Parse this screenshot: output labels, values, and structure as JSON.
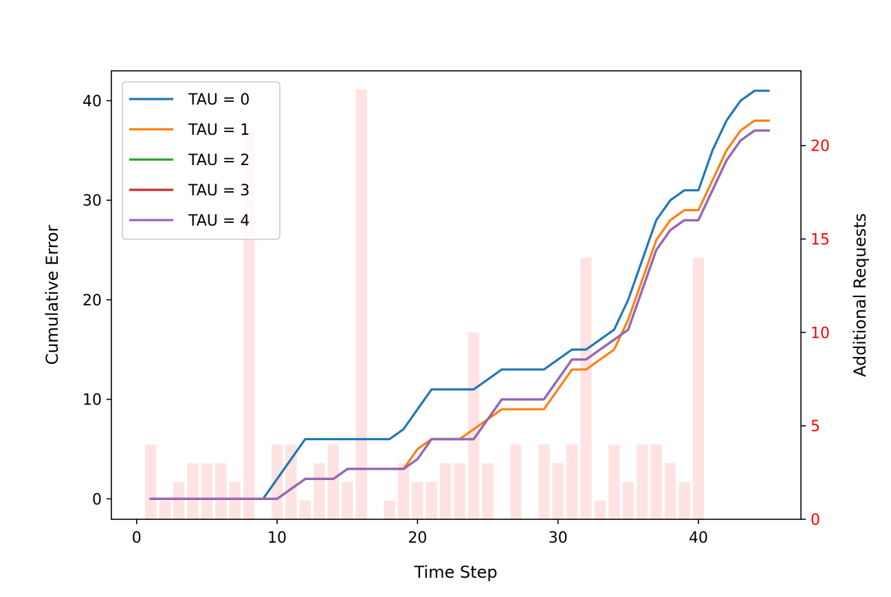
{
  "chart_data": {
    "type": "line",
    "title": "",
    "xlabel": "Time Step",
    "ylabel": "Cumulative Error",
    "y2label": "Additional Requests",
    "xlim": [
      -1.8,
      47.3
    ],
    "ylim": [
      -2.05,
      43.0
    ],
    "y2lim": [
      0,
      24.0
    ],
    "x_ticks": [
      0,
      10,
      20,
      30,
      40
    ],
    "y_ticks": [
      0,
      10,
      20,
      30,
      40
    ],
    "y2_ticks": [
      0,
      5,
      10,
      15,
      20
    ],
    "y2_tick_color": "#ff0000",
    "grid": false,
    "legend_position": "upper-left",
    "x": [
      1,
      2,
      3,
      4,
      5,
      6,
      7,
      8,
      9,
      10,
      11,
      12,
      13,
      14,
      15,
      16,
      17,
      18,
      19,
      20,
      21,
      22,
      23,
      24,
      25,
      26,
      27,
      28,
      29,
      30,
      31,
      32,
      33,
      34,
      35,
      36,
      37,
      38,
      39,
      40,
      41,
      42,
      43,
      44,
      45
    ],
    "series": [
      {
        "name": "TAU = 0",
        "color": "#1f77b4",
        "values": [
          0,
          0,
          0,
          0,
          0,
          0,
          0,
          0,
          0,
          2,
          4,
          6,
          6,
          6,
          6,
          6,
          6,
          6,
          7,
          9,
          11,
          11,
          11,
          11,
          12,
          13,
          13,
          13,
          13,
          14,
          15,
          15,
          16,
          17,
          20,
          24,
          28,
          30,
          31,
          31,
          35,
          38,
          40,
          41,
          41
        ]
      },
      {
        "name": "TAU = 1",
        "color": "#ff7f0e",
        "values": [
          0,
          0,
          0,
          0,
          0,
          0,
          0,
          0,
          0,
          0,
          1,
          2,
          2,
          2,
          3,
          3,
          3,
          3,
          3,
          5,
          6,
          6,
          6,
          7,
          8,
          9,
          9,
          9,
          9,
          11,
          13,
          13,
          14,
          15,
          18,
          22,
          26,
          28,
          29,
          29,
          32,
          35,
          37,
          38,
          38
        ]
      },
      {
        "name": "TAU = 2",
        "color": "#2ca02c",
        "values": [
          0,
          0,
          0,
          0,
          0,
          0,
          0,
          0,
          0,
          0,
          1,
          2,
          2,
          2,
          3,
          3,
          3,
          3,
          3,
          4,
          6,
          6,
          6,
          6,
          8,
          10,
          10,
          10,
          10,
          12,
          14,
          14,
          15,
          16,
          17,
          21,
          25,
          27,
          28,
          28,
          31,
          34,
          36,
          37,
          37
        ]
      },
      {
        "name": "TAU = 3",
        "color": "#d62728",
        "values": [
          0,
          0,
          0,
          0,
          0,
          0,
          0,
          0,
          0,
          0,
          1,
          2,
          2,
          2,
          3,
          3,
          3,
          3,
          3,
          4,
          6,
          6,
          6,
          6,
          8,
          10,
          10,
          10,
          10,
          12,
          14,
          14,
          15,
          16,
          17,
          21,
          25,
          27,
          28,
          28,
          31,
          34,
          36,
          37,
          37
        ]
      },
      {
        "name": "TAU = 4",
        "color": "#9467bd",
        "values": [
          0,
          0,
          0,
          0,
          0,
          0,
          0,
          0,
          0,
          0,
          1,
          2,
          2,
          2,
          3,
          3,
          3,
          3,
          3,
          4,
          6,
          6,
          6,
          6,
          8,
          10,
          10,
          10,
          10,
          12,
          14,
          14,
          15,
          16,
          17,
          21,
          25,
          27,
          28,
          28,
          31,
          34,
          36,
          37,
          37
        ]
      }
    ],
    "bars": {
      "name": "Additional Requests",
      "axis": "right",
      "color": "#ffcccc",
      "x": [
        1,
        2,
        3,
        4,
        5,
        6,
        7,
        8,
        9,
        10,
        11,
        12,
        13,
        14,
        15,
        16,
        17,
        18,
        19,
        20,
        21,
        22,
        23,
        24,
        25,
        26,
        27,
        28,
        29,
        30,
        31,
        32,
        33,
        34,
        35,
        36,
        37,
        38,
        39,
        40
      ],
      "values": [
        4,
        1,
        2,
        3,
        3,
        3,
        2,
        21,
        0,
        4,
        4,
        1,
        3,
        4,
        2,
        23,
        0,
        1,
        3,
        2,
        2,
        3,
        3,
        10,
        3,
        0,
        4,
        0,
        4,
        3,
        4,
        14,
        1,
        4,
        2,
        4,
        4,
        3,
        2,
        14
      ]
    }
  }
}
